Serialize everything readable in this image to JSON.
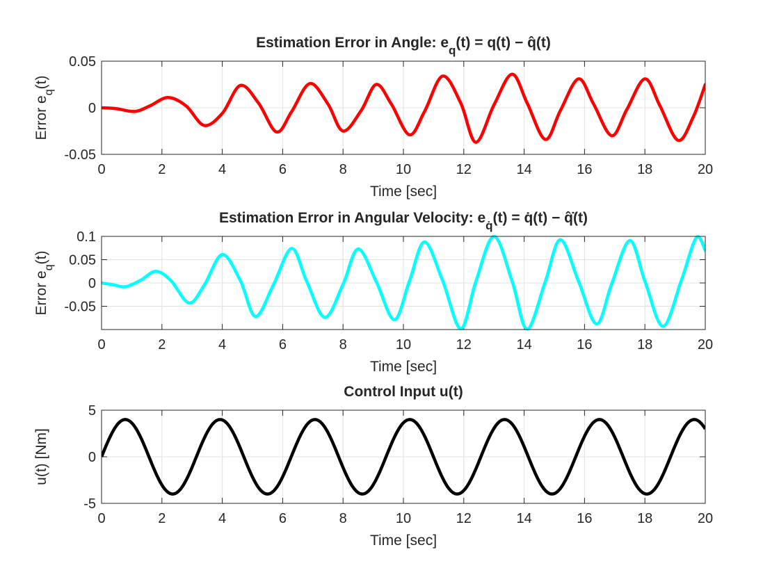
{
  "figure": {
    "background": "#ffffff",
    "axes_color": "#262626",
    "grid_color": "#e1e1e1"
  },
  "chart_data": [
    {
      "type": "line",
      "title_main": "Estimation Error in Angle: e",
      "title_sub": "q",
      "title_rest": "(t) = q(t) − q̂(t)",
      "xlabel": "Time [sec]",
      "ylabel_main": "Error e",
      "ylabel_sub": "q",
      "ylabel_rest": "(t)",
      "xlim": [
        0,
        20
      ],
      "ylim": [
        -0.05,
        0.05
      ],
      "xticks": [
        "0",
        "2",
        "4",
        "6",
        "8",
        "10",
        "12",
        "14",
        "16",
        "18",
        "20"
      ],
      "yticks": [
        "-0.05",
        "0",
        "0.05"
      ],
      "grid": true,
      "series": [
        {
          "color": "#ff0000",
          "x": [
            0,
            0.5,
            1.1,
            1.6,
            2.2,
            2.8,
            3.4,
            4.0,
            4.6,
            5.2,
            5.8,
            6.3,
            6.9,
            7.5,
            8.0,
            8.6,
            9.1,
            9.6,
            10.2,
            10.7,
            11.3,
            11.9,
            12.4,
            13.0,
            13.6,
            14.1,
            14.7,
            15.2,
            15.8,
            16.3,
            16.9,
            17.4,
            18.0,
            18.5,
            19.1,
            19.6,
            20.0
          ],
          "y": [
            0,
            -0.001,
            -0.004,
            0.002,
            0.011,
            0.002,
            -0.019,
            -0.006,
            0.024,
            0.005,
            -0.026,
            -0.004,
            0.026,
            0.004,
            -0.025,
            -0.003,
            0.025,
            0.004,
            -0.029,
            -0.004,
            0.034,
            0.005,
            -0.037,
            0.003,
            0.036,
            0.005,
            -0.034,
            -0.003,
            0.031,
            0.004,
            -0.03,
            -0.002,
            0.031,
            0.002,
            -0.035,
            -0.01,
            0.025
          ]
        }
      ]
    },
    {
      "type": "line",
      "title_main": "Estimation Error in Angular Velocity: e",
      "title_sub": "q̇",
      "title_rest": "(t) = q̇(t) − q̂̇(t)",
      "xlabel": "Time [sec]",
      "ylabel_main": "Error e",
      "ylabel_sub": "q",
      "ylabel_rest": "(t)",
      "xlim": [
        0,
        20
      ],
      "ylim": [
        -0.1,
        0.1
      ],
      "xticks": [
        "0",
        "2",
        "4",
        "6",
        "8",
        "10",
        "12",
        "14",
        "16",
        "18",
        "20"
      ],
      "yticks": [
        "-0.05",
        "0",
        "0.05",
        "0.1"
      ],
      "grid": true,
      "series": [
        {
          "color": "#00ffff",
          "x": [
            0,
            0.4,
            0.8,
            1.3,
            1.8,
            2.3,
            2.9,
            3.4,
            4.0,
            4.6,
            5.1,
            5.7,
            6.3,
            6.8,
            7.4,
            8.0,
            8.5,
            9.1,
            9.7,
            10.2,
            10.7,
            11.3,
            11.9,
            12.4,
            13.0,
            13.6,
            14.1,
            14.7,
            15.2,
            15.8,
            16.4,
            16.9,
            17.5,
            18.0,
            18.6,
            19.2,
            19.7,
            20.0
          ],
          "y": [
            0,
            -0.004,
            -0.008,
            0.006,
            0.025,
            0.005,
            -0.043,
            -0.005,
            0.061,
            0.005,
            -0.072,
            -0.003,
            0.074,
            0.003,
            -0.074,
            -0.003,
            0.073,
            0.003,
            -0.079,
            0.004,
            0.088,
            0.005,
            -0.098,
            0.003,
            0.1,
            0.004,
            -0.099,
            0.003,
            0.093,
            0.004,
            -0.088,
            -0.002,
            0.091,
            0.004,
            -0.093,
            0.004,
            0.097,
            0.07
          ]
        }
      ]
    },
    {
      "type": "line",
      "title_main": "Control Input u(t)",
      "title_sub": "",
      "title_rest": "",
      "xlabel": "Time [sec]",
      "ylabel_main": "u(t) [Nm]",
      "ylabel_sub": "",
      "ylabel_rest": "",
      "xlim": [
        0,
        20
      ],
      "ylim": [
        -5,
        5
      ],
      "xticks": [
        "0",
        "2",
        "4",
        "6",
        "8",
        "10",
        "12",
        "14",
        "16",
        "18",
        "20"
      ],
      "yticks": [
        "-5",
        "0",
        "5"
      ],
      "grid": true,
      "series": [
        {
          "color": "#000000",
          "function": "4*sin(2*t)",
          "x": [
            0,
            0.79,
            1.57,
            2.36,
            3.14,
            3.93,
            4.71,
            5.5,
            6.28,
            7.07,
            7.85,
            8.64,
            9.42,
            10.21,
            11.0,
            11.78,
            12.57,
            13.35,
            14.14,
            14.92,
            15.71,
            16.49,
            17.28,
            18.06,
            18.85,
            19.63,
            20.0
          ],
          "y": [
            0,
            4,
            0,
            -4,
            0,
            4,
            0,
            -4,
            0,
            4,
            0,
            -4,
            0,
            4,
            0,
            -4,
            0,
            4,
            0,
            -4,
            0,
            4,
            0,
            -4,
            0,
            4,
            3.0
          ]
        }
      ]
    }
  ]
}
